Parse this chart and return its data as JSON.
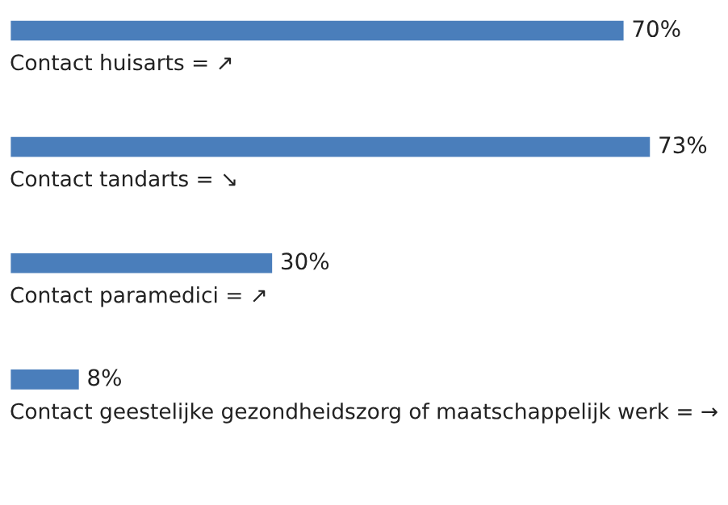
{
  "chart_data": {
    "type": "bar",
    "orientation": "horizontal",
    "categories": [
      "Contact huisarts = ↗",
      "Contact tandarts = ↘",
      "Contact paramedici = ↗",
      "Contact geestelijke gezondheidszorg of maatschappelijk werk = →"
    ],
    "values": [
      70,
      73,
      30,
      8
    ],
    "value_labels": [
      "70%",
      "73%",
      "30%",
      "8%"
    ],
    "color": "#4a7ebb"
  }
}
